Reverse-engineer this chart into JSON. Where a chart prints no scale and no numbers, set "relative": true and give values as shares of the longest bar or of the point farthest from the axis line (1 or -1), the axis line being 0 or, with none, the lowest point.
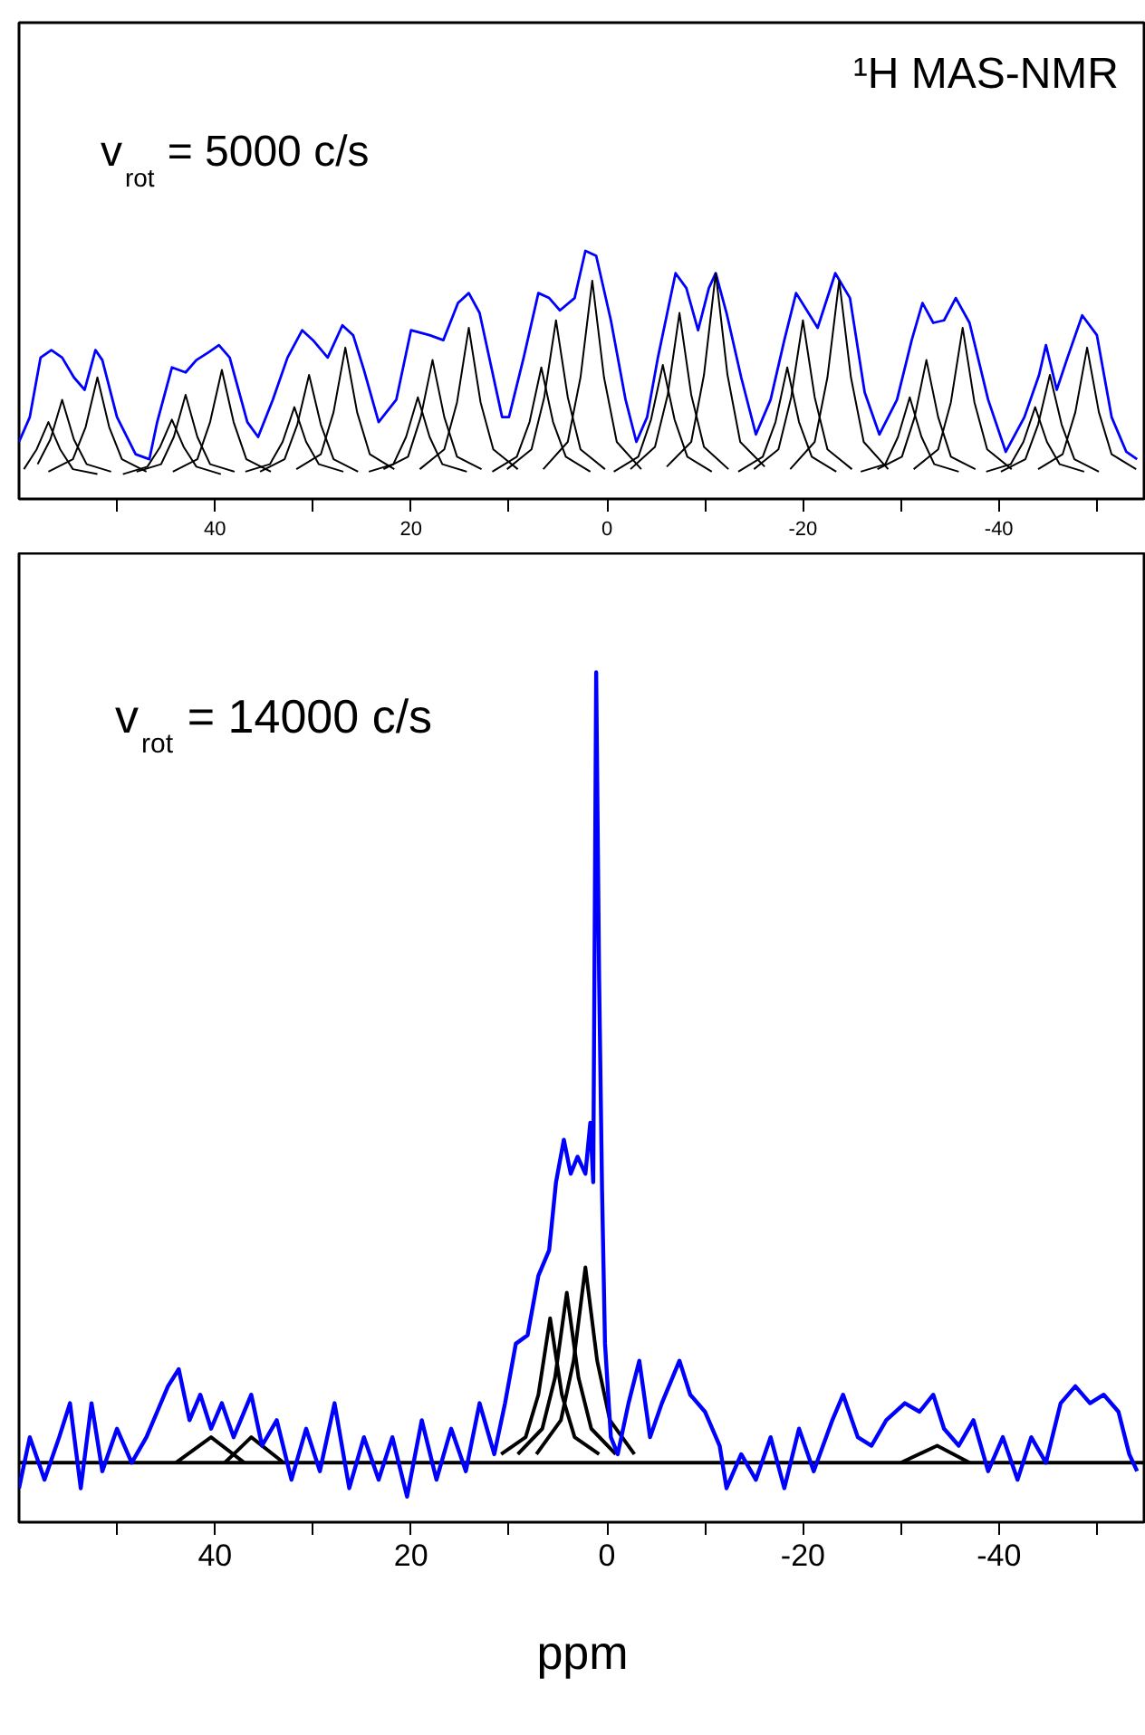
{
  "chart_data": [
    {
      "type": "line",
      "title": "¹H MAS-NMR",
      "annotations": [
        "v$_{rot}$ = 5000 c/s"
      ],
      "relative": true,
      "xlim": [
        60,
        -55
      ],
      "xticks": [
        {
          "value": 50,
          "label": null
        },
        40,
        {
          "value": 30,
          "label": null
        },
        20,
        {
          "value": 10,
          "label": null
        },
        0,
        {
          "value": -10,
          "label": null
        },
        -20,
        {
          "value": -30,
          "label": null
        },
        -40,
        {
          "value": -50,
          "label": null
        }
      ],
      "series": [
        {
          "color": "#0000ff",
          "x": [
            60.0,
            58.9,
            57.8,
            56.7,
            55.6,
            54.4,
            53.3,
            52.2,
            51.5,
            50.0,
            48.1,
            46.7,
            45.9,
            44.4,
            43.0,
            41.9,
            40.7,
            39.6,
            38.5,
            36.7,
            35.6,
            34.1,
            32.6,
            31.1,
            30.0,
            28.5,
            27.0,
            25.9,
            24.8,
            23.3,
            21.5,
            20.0,
            18.1,
            16.7,
            15.2,
            14.1,
            13.0,
            10.7,
            10.0,
            8.5,
            7.0,
            5.9,
            4.8,
            3.3,
            2.2,
            1.1,
            -0.4,
            -1.9,
            -3.0,
            -4.1,
            -5.2,
            -7.0,
            -8.1,
            -9.3,
            -10.4,
            -11.1,
            -12.2,
            -13.7,
            -15.2,
            -16.7,
            -18.1,
            -19.3,
            -20.4,
            -21.5,
            -23.3,
            -24.8,
            -26.3,
            -27.8,
            -29.6,
            -31.1,
            -32.2,
            -33.3,
            -34.4,
            -35.6,
            -37.0,
            -38.9,
            -40.7,
            -42.6,
            -44.1,
            -44.8,
            -45.9,
            -47.0,
            -48.5,
            -50.0,
            -51.5,
            -53.0,
            -54.1
          ],
          "values": [
            0.23,
            0.33,
            0.57,
            0.6,
            0.57,
            0.49,
            0.44,
            0.6,
            0.56,
            0.33,
            0.18,
            0.16,
            0.31,
            0.53,
            0.51,
            0.56,
            0.59,
            0.62,
            0.57,
            0.31,
            0.25,
            0.4,
            0.57,
            0.68,
            0.64,
            0.57,
            0.7,
            0.66,
            0.52,
            0.31,
            0.4,
            0.68,
            0.66,
            0.64,
            0.79,
            0.83,
            0.75,
            0.33,
            0.33,
            0.57,
            0.83,
            0.81,
            0.76,
            0.81,
            1.0,
            0.98,
            0.72,
            0.4,
            0.23,
            0.33,
            0.57,
            0.91,
            0.85,
            0.68,
            0.85,
            0.91,
            0.75,
            0.49,
            0.26,
            0.4,
            0.64,
            0.83,
            0.76,
            0.69,
            0.91,
            0.81,
            0.43,
            0.26,
            0.4,
            0.64,
            0.79,
            0.71,
            0.72,
            0.81,
            0.71,
            0.4,
            0.19,
            0.33,
            0.5,
            0.62,
            0.44,
            0.57,
            0.74,
            0.66,
            0.33,
            0.19,
            0.16
          ]
        },
        {
          "color": "#000000",
          "x": [
            59.5,
            58.2,
            57.0,
            55.8,
            54.5,
            52.0
          ],
          "values": [
            0.12,
            0.2,
            0.31,
            0.2,
            0.12,
            0.1
          ]
        },
        {
          "color": "#000000",
          "x": [
            58.1,
            56.8,
            55.6,
            54.4,
            53.1,
            50.6
          ],
          "values": [
            0.14,
            0.24,
            0.4,
            0.24,
            0.14,
            0.11
          ]
        },
        {
          "color": "#000000",
          "x": [
            57.0,
            54.5,
            53.2,
            52.0,
            50.8,
            49.5,
            47.0
          ],
          "values": [
            0.11,
            0.16,
            0.29,
            0.49,
            0.29,
            0.16,
            0.11
          ]
        },
        {
          "color": "#000000",
          "x": [
            49.4,
            46.9,
            45.6,
            44.4,
            43.2,
            41.9,
            39.4
          ],
          "values": [
            0.1,
            0.13,
            0.21,
            0.32,
            0.21,
            0.13,
            0.1
          ]
        },
        {
          "color": "#000000",
          "x": [
            48.0,
            45.5,
            44.2,
            43.0,
            41.8,
            40.5,
            38.0
          ],
          "values": [
            0.11,
            0.14,
            0.25,
            0.42,
            0.25,
            0.14,
            0.11
          ]
        },
        {
          "color": "#000000",
          "x": [
            44.3,
            41.8,
            40.5,
            39.3,
            38.1,
            36.8,
            34.3
          ],
          "values": [
            0.11,
            0.16,
            0.31,
            0.52,
            0.31,
            0.16,
            0.11
          ]
        },
        {
          "color": "#000000",
          "x": [
            36.9,
            34.4,
            33.1,
            31.9,
            30.7,
            29.4,
            26.9
          ],
          "values": [
            0.11,
            0.14,
            0.23,
            0.37,
            0.23,
            0.14,
            0.11
          ]
        },
        {
          "color": "#000000",
          "x": [
            35.4,
            32.9,
            31.6,
            30.4,
            29.2,
            27.9,
            25.4
          ],
          "values": [
            0.11,
            0.16,
            0.3,
            0.5,
            0.3,
            0.16,
            0.11
          ]
        },
        {
          "color": "#000000",
          "x": [
            31.7,
            29.2,
            27.9,
            26.7,
            25.5,
            24.2,
            21.7
          ],
          "values": [
            0.12,
            0.18,
            0.35,
            0.61,
            0.35,
            0.18,
            0.12
          ]
        },
        {
          "color": "#000000",
          "x": [
            24.3,
            21.8,
            20.5,
            19.3,
            18.1,
            16.8,
            14.3
          ],
          "values": [
            0.11,
            0.14,
            0.25,
            0.41,
            0.25,
            0.14,
            0.11
          ]
        },
        {
          "color": "#000000",
          "x": [
            22.8,
            20.3,
            19.0,
            17.8,
            16.6,
            15.3,
            12.8
          ],
          "values": [
            0.12,
            0.17,
            0.33,
            0.56,
            0.33,
            0.17,
            0.12
          ]
        },
        {
          "color": "#000000",
          "x": [
            19.1,
            16.6,
            15.3,
            14.1,
            12.9,
            11.6,
            9.1
          ],
          "values": [
            0.12,
            0.2,
            0.39,
            0.69,
            0.39,
            0.2,
            0.12
          ]
        },
        {
          "color": "#000000",
          "x": [
            11.7,
            9.2,
            7.9,
            6.7,
            5.5,
            4.2,
            1.7
          ],
          "values": [
            0.11,
            0.17,
            0.31,
            0.53,
            0.31,
            0.17,
            0.11
          ]
        },
        {
          "color": "#000000",
          "x": [
            10.2,
            7.7,
            6.4,
            5.2,
            4.0,
            2.7,
            0.2
          ],
          "values": [
            0.12,
            0.2,
            0.41,
            0.72,
            0.41,
            0.2,
            0.12
          ]
        },
        {
          "color": "#000000",
          "x": [
            6.5,
            4.0,
            2.7,
            1.5,
            0.3,
            -1.0,
            -3.5
          ],
          "values": [
            0.12,
            0.23,
            0.49,
            0.88,
            0.49,
            0.23,
            0.12
          ]
        },
        {
          "color": "#000000",
          "x": [
            -0.7,
            -3.2,
            -4.5,
            -5.7,
            -6.9,
            -8.2,
            -10.7
          ],
          "values": [
            0.11,
            0.17,
            0.32,
            0.54,
            0.32,
            0.17,
            0.11
          ]
        },
        {
          "color": "#000000",
          "x": [
            -2.4,
            -4.9,
            -6.2,
            -7.4,
            -8.6,
            -9.9,
            -12.4
          ],
          "values": [
            0.12,
            0.21,
            0.42,
            0.75,
            0.42,
            0.21,
            0.12
          ]
        },
        {
          "color": "#000000",
          "x": [
            -6.1,
            -8.6,
            -9.9,
            -11.1,
            -12.3,
            -13.6,
            -16.1
          ],
          "values": [
            0.13,
            0.23,
            0.5,
            0.91,
            0.5,
            0.23,
            0.13
          ]
        },
        {
          "color": "#000000",
          "x": [
            -13.4,
            -15.9,
            -17.2,
            -18.4,
            -19.6,
            -20.9,
            -23.4
          ],
          "values": [
            0.11,
            0.17,
            0.31,
            0.53,
            0.31,
            0.17,
            0.11
          ]
        },
        {
          "color": "#000000",
          "x": [
            -15.0,
            -17.5,
            -18.8,
            -20.0,
            -21.2,
            -22.5,
            -25.0
          ],
          "values": [
            0.12,
            0.2,
            0.41,
            0.72,
            0.41,
            0.2,
            0.12
          ]
        },
        {
          "color": "#000000",
          "x": [
            -18.7,
            -21.2,
            -22.5,
            -23.7,
            -24.9,
            -26.2,
            -28.7
          ],
          "values": [
            0.12,
            0.23,
            0.49,
            0.88,
            0.49,
            0.23,
            0.12
          ]
        },
        {
          "color": "#000000",
          "x": [
            -25.9,
            -28.4,
            -29.7,
            -30.9,
            -32.1,
            -33.4,
            -35.9
          ],
          "values": [
            0.11,
            0.14,
            0.25,
            0.41,
            0.25,
            0.14,
            0.11
          ]
        },
        {
          "color": "#000000",
          "x": [
            -27.6,
            -30.1,
            -31.4,
            -32.6,
            -33.8,
            -35.1,
            -37.6
          ],
          "values": [
            0.12,
            0.17,
            0.33,
            0.56,
            0.33,
            0.17,
            0.12
          ]
        },
        {
          "color": "#000000",
          "x": [
            -31.3,
            -33.8,
            -35.1,
            -36.3,
            -37.5,
            -38.8,
            -41.3
          ],
          "values": [
            0.12,
            0.2,
            0.39,
            0.69,
            0.39,
            0.2,
            0.12
          ]
        },
        {
          "color": "#000000",
          "x": [
            -38.7,
            -41.2,
            -42.5,
            -43.7,
            -44.9,
            -46.2,
            -48.7
          ],
          "values": [
            0.11,
            0.14,
            0.23,
            0.37,
            0.23,
            0.14,
            0.11
          ]
        },
        {
          "color": "#000000",
          "x": [
            -40.2,
            -42.7,
            -44.0,
            -45.2,
            -46.4,
            -47.7,
            -50.2
          ],
          "values": [
            0.11,
            0.16,
            0.3,
            0.5,
            0.3,
            0.16,
            0.11
          ]
        },
        {
          "color": "#000000",
          "x": [
            -44.0,
            -46.5,
            -47.8,
            -49.0,
            -50.2,
            -51.5,
            -54.0
          ],
          "values": [
            0.12,
            0.18,
            0.35,
            0.61,
            0.35,
            0.18,
            0.12
          ]
        }
      ]
    },
    {
      "type": "line",
      "xlabel": "ppm",
      "annotations": [
        "v$_{rot}$ = 14000 c/s"
      ],
      "relative": true,
      "xlim": [
        60,
        -55
      ],
      "xticks": [
        {
          "value": 50,
          "label": null
        },
        40,
        {
          "value": 30,
          "label": null
        },
        20,
        {
          "value": 10,
          "label": null
        },
        0,
        {
          "value": -10,
          "label": null
        },
        -20,
        {
          "value": -30,
          "label": null
        },
        -40,
        {
          "value": -50,
          "label": null
        }
      ],
      "series": [
        {
          "color": "#000000",
          "x": [
            60,
            -55
          ],
          "values": [
            0.07,
            0.07
          ]
        },
        {
          "color": "#000000",
          "x": [
            44.0,
            40.4,
            37.0
          ],
          "values": [
            0.07,
            0.1,
            0.07
          ]
        },
        {
          "color": "#000000",
          "x": [
            39.0,
            36.3,
            33.0
          ],
          "values": [
            0.07,
            0.1,
            0.07
          ]
        },
        {
          "color": "#000000",
          "x": [
            -30.0,
            -33.7,
            -37.0
          ],
          "values": [
            0.07,
            0.09,
            0.07
          ]
        },
        {
          "color": "#000000",
          "x": [
            10.8,
            8.3,
            7.0,
            5.8,
            4.6,
            3.3,
            0.8
          ],
          "values": [
            0.08,
            0.1,
            0.15,
            0.24,
            0.15,
            0.1,
            0.08
          ]
        },
        {
          "color": "#000000",
          "x": [
            9.1,
            6.6,
            5.3,
            4.1,
            2.9,
            1.6,
            -0.9
          ],
          "values": [
            0.08,
            0.11,
            0.17,
            0.27,
            0.17,
            0.11,
            0.08
          ]
        },
        {
          "color": "#000000",
          "x": [
            7.2,
            4.7,
            3.4,
            2.2,
            1.0,
            -0.3,
            -2.8
          ],
          "values": [
            0.08,
            0.12,
            0.19,
            0.3,
            0.19,
            0.12,
            0.08
          ]
        },
        {
          "color": "#0000ff",
          "x": [
            60.0,
            58.9,
            57.4,
            55.9,
            54.8,
            53.7,
            52.6,
            51.5,
            50.0,
            48.5,
            47.0,
            45.9,
            44.8,
            43.7,
            42.6,
            41.5,
            40.4,
            39.3,
            38.1,
            36.3,
            35.2,
            33.7,
            32.2,
            30.7,
            29.3,
            27.8,
            26.3,
            24.8,
            23.3,
            21.9,
            20.4,
            18.9,
            17.4,
            15.9,
            14.4,
            13.0,
            11.5,
            10.4,
            9.3,
            8.1,
            7.0,
            5.9,
            5.2,
            4.4,
            3.7,
            3.0,
            2.2,
            1.7,
            1.4,
            1.1,
            0.8,
            0.5,
            0.2,
            -0.4,
            -1.1,
            -2.2,
            -3.3,
            -4.4,
            -5.6,
            -7.4,
            -8.5,
            -10.0,
            -11.5,
            -12.2,
            -13.7,
            -15.2,
            -16.7,
            -18.1,
            -19.6,
            -21.1,
            -23.0,
            -24.1,
            -25.6,
            -27.0,
            -28.5,
            -30.4,
            -31.9,
            -33.3,
            -34.4,
            -35.9,
            -37.4,
            -38.9,
            -40.4,
            -41.9,
            -43.3,
            -44.8,
            -46.3,
            -47.8,
            -49.3,
            -50.7,
            -52.2,
            -53.3,
            -54.1
          ],
          "values": [
            0.04,
            0.1,
            0.05,
            0.1,
            0.14,
            0.04,
            0.14,
            0.06,
            0.11,
            0.07,
            0.1,
            0.13,
            0.16,
            0.18,
            0.12,
            0.15,
            0.11,
            0.14,
            0.1,
            0.15,
            0.09,
            0.12,
            0.05,
            0.11,
            0.06,
            0.14,
            0.04,
            0.1,
            0.05,
            0.1,
            0.03,
            0.12,
            0.05,
            0.11,
            0.06,
            0.14,
            0.08,
            0.14,
            0.21,
            0.22,
            0.29,
            0.32,
            0.4,
            0.45,
            0.41,
            0.43,
            0.41,
            0.47,
            0.4,
            1.0,
            0.64,
            0.39,
            0.21,
            0.1,
            0.08,
            0.14,
            0.19,
            0.1,
            0.14,
            0.19,
            0.15,
            0.13,
            0.09,
            0.04,
            0.08,
            0.05,
            0.1,
            0.04,
            0.11,
            0.06,
            0.12,
            0.15,
            0.1,
            0.09,
            0.12,
            0.14,
            0.13,
            0.15,
            0.11,
            0.09,
            0.12,
            0.06,
            0.1,
            0.05,
            0.1,
            0.07,
            0.14,
            0.16,
            0.14,
            0.15,
            0.13,
            0.08,
            0.06
          ]
        }
      ]
    }
  ]
}
